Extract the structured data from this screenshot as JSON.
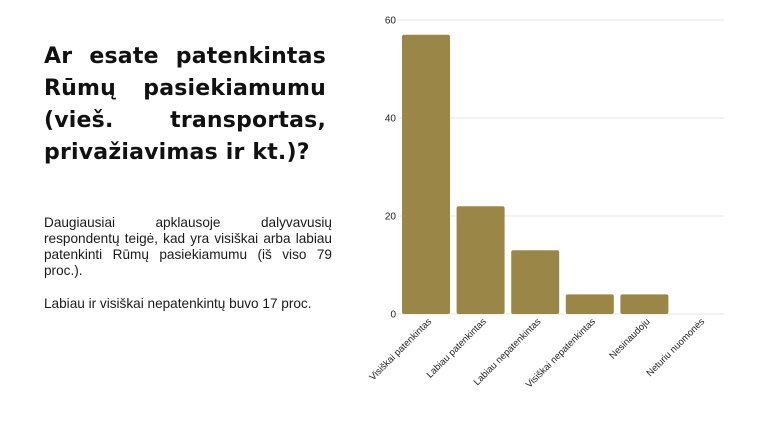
{
  "slide": {
    "title": "Ar esate patenkintas Rūmų pasiekiamumu (vieš. transportas, privažiavimas ir kt.)?",
    "paragraphs": [
      "Daugiausiai apklausoje dalyvavusių respondentų teigė, kad yra visiškai arba labiau patenkinti Rūmų pasiekiamumu (iš viso 79 proc.).",
      "Labiau ir visiškai nepatenkintų buvo 17 proc."
    ]
  },
  "chart_data": {
    "type": "bar",
    "categories": [
      "Visiškai patenkintas",
      "Labiau patenkintas",
      "Labiau nepatenkintas",
      "Visiškai nepatenkintas",
      "Nesinaudoju",
      "Neturiu nuomonės"
    ],
    "values": [
      57,
      22,
      13,
      4,
      4,
      0
    ],
    "ylim": [
      0,
      60
    ],
    "yticks": [
      0,
      20,
      40,
      60
    ],
    "grid": true,
    "legend": "none",
    "bar_color": "#9a8748",
    "grid_color": "#e6e6e6"
  }
}
